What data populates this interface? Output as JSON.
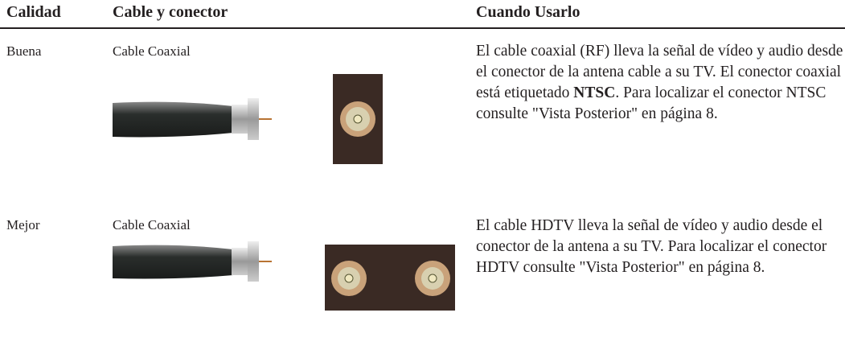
{
  "table": {
    "headers": [
      "Calidad",
      "Cable y conector",
      "Cuando Usarlo"
    ],
    "rows": [
      {
        "quality": "Buena",
        "cable": "Cable Coaxial",
        "description": {
          "before": "El cable coaxial (RF) lleva la señal de vídeo y audio desde el conector de la antena cable a su TV. El conector coaxial está etiquetado ",
          "bold": "NTSC",
          "after": ". Para localizar el conector NTSC consulte \"Vista Posterior\" en página  8."
        }
      },
      {
        "quality": "Mejor",
        "cable": "Cable Coaxial",
        "description": {
          "before": "El  cable  HDTV lleva la señal de vídeo y audio desde el conector de la antena a su TV. Para localizar el  conector  HDTV consulte \"Vista Posterior\" en página  8.",
          "bold": null,
          "after": null
        }
      }
    ]
  }
}
